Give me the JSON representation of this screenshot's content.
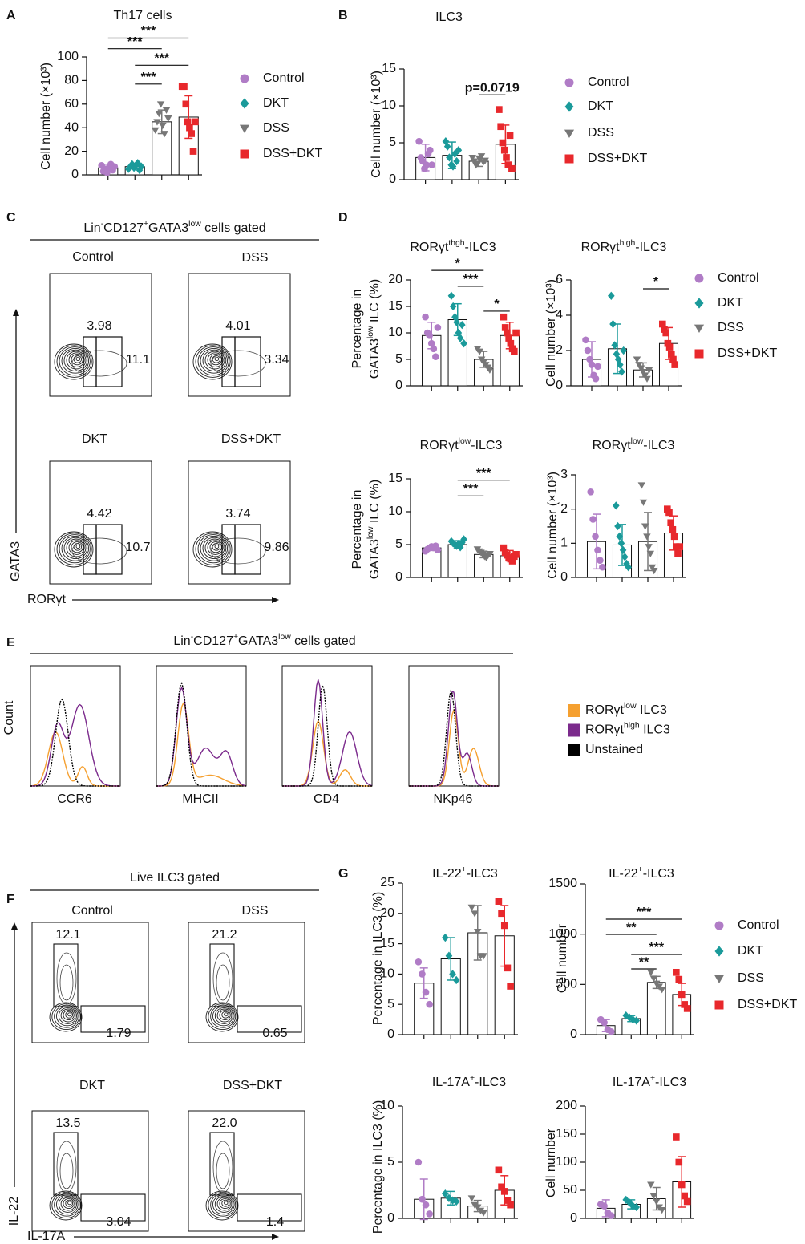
{
  "panel_labels": [
    "A",
    "B",
    "C",
    "D",
    "E",
    "F",
    "G"
  ],
  "chart_data": [
    {
      "type": "bar",
      "title": "Th17 cells",
      "ylabel": [
        [
          "Cell number (×10³)"
        ]
      ],
      "ylim": [
        0,
        100
      ],
      "yticks": [
        0,
        20,
        40,
        60,
        80,
        100
      ],
      "series": [
        {
          "color": "#b07cc6",
          "marker": "circle",
          "value": 6,
          "error": 3,
          "points": [
            8,
            3,
            5,
            2,
            6,
            9,
            4,
            7
          ]
        },
        {
          "color": "#1a9a9a",
          "marker": "diamond",
          "value": 7,
          "error": 2,
          "points": [
            5,
            7,
            9,
            6,
            8,
            10,
            4,
            7
          ]
        },
        {
          "color": "#777777",
          "marker": "triangle",
          "value": 45,
          "error": 10,
          "points": [
            38,
            45,
            52,
            60,
            42,
            35,
            55,
            48
          ]
        },
        {
          "color": "#e8282c",
          "marker": "square",
          "value": 49,
          "error": 18,
          "points": [
            75,
            75,
            60,
            45,
            40,
            35,
            20,
            45
          ]
        }
      ],
      "annotations": [
        "***",
        "***",
        "***",
        "***"
      ]
    },
    {
      "type": "bar",
      "title": "ILC3",
      "ylabel": [
        [
          "Cell number (×10³)"
        ]
      ],
      "ylim": [
        0,
        15
      ],
      "yticks": [
        0,
        5,
        10,
        15
      ],
      "series": [
        {
          "color": "#b07cc6",
          "marker": "circle",
          "value": 3,
          "error": 1.8,
          "points": [
            5.2,
            3,
            2.5,
            1.5,
            2,
            3.5,
            4,
            2
          ]
        },
        {
          "color": "#1a9a9a",
          "marker": "diamond",
          "value": 3.3,
          "error": 1.8,
          "points": [
            5.2,
            4.5,
            3,
            2,
            1.8,
            3.5,
            2.5,
            4
          ]
        },
        {
          "color": "#777777",
          "marker": "triangle",
          "value": 2.5,
          "error": 0.7,
          "points": [
            3,
            2.5,
            2,
            2.2,
            2.8,
            3.2,
            2.4,
            2.6
          ]
        },
        {
          "color": "#e8282c",
          "marker": "square",
          "value": 4.8,
          "error": 2.6,
          "points": [
            9.5,
            7.2,
            5,
            4,
            3,
            2,
            6,
            1.5
          ]
        }
      ],
      "annotations": [
        "p=0.0719"
      ]
    },
    {
      "type": "bar",
      "title": [
        "RORγt",
        "thgh",
        "-ILC3"
      ],
      "ylabel": [
        [
          "Percentage in"
        ],
        [
          "GATA3",
          "low",
          " ILC (%)"
        ]
      ],
      "ylim": [
        0,
        20
      ],
      "yticks": [
        0,
        5,
        10,
        15,
        20
      ],
      "series": [
        {
          "color": "#b07cc6",
          "marker": "circle",
          "value": 9.5,
          "error": 2.5,
          "points": [
            13,
            10,
            9.5,
            8,
            7,
            5.5,
            11
          ]
        },
        {
          "color": "#1a9a9a",
          "marker": "diamond",
          "value": 12.5,
          "error": 3,
          "points": [
            17,
            15,
            13,
            12,
            10,
            9,
            11.5,
            8
          ]
        },
        {
          "color": "#777777",
          "marker": "triangle",
          "value": 5,
          "error": 1.5,
          "points": [
            7,
            6.5,
            5,
            4.5,
            4,
            3.5,
            3
          ]
        },
        {
          "color": "#e8282c",
          "marker": "square",
          "value": 9.5,
          "error": 2.5,
          "points": [
            13,
            11,
            10,
            9,
            8,
            7,
            6.5,
            10
          ]
        }
      ],
      "annotations": [
        "*",
        "***",
        "*"
      ]
    },
    {
      "type": "bar",
      "title": [
        "RORγt",
        "high",
        "-ILC3"
      ],
      "ylabel": [
        [
          "Cell number (×10³)"
        ]
      ],
      "ylim": [
        0,
        6
      ],
      "yticks": [
        0,
        2,
        4,
        6
      ],
      "series": [
        {
          "color": "#b07cc6",
          "marker": "circle",
          "value": 1.5,
          "error": 1,
          "points": [
            2.6,
            2,
            1.5,
            1.2,
            0.6,
            0.4,
            1.1
          ]
        },
        {
          "color": "#1a9a9a",
          "marker": "diamond",
          "value": 2.1,
          "error": 1.4,
          "points": [
            5.1,
            3.5,
            2.3,
            1.8,
            1.5,
            1.2,
            0.8,
            2
          ]
        },
        {
          "color": "#777777",
          "marker": "triangle",
          "value": 0.9,
          "error": 0.4,
          "points": [
            1.5,
            1.2,
            1,
            0.8,
            0.6,
            0.4,
            0.9
          ]
        },
        {
          "color": "#e8282c",
          "marker": "square",
          "value": 2.4,
          "error": 0.9,
          "points": [
            3.5,
            3.2,
            3,
            2.4,
            2.2,
            1.8,
            1.5,
            1.2
          ]
        }
      ],
      "annotations": [
        "*"
      ]
    },
    {
      "type": "bar",
      "title": [
        "RORγt",
        "low",
        "-ILC3"
      ],
      "ylabel": [
        [
          "Percentage in"
        ],
        [
          "GATA3",
          "low",
          " ILC (%)"
        ]
      ],
      "ylim": [
        0,
        15
      ],
      "yticks": [
        0,
        5,
        10,
        15
      ],
      "series": [
        {
          "color": "#b07cc6",
          "marker": "circle",
          "value": 4.5,
          "error": 0.4,
          "points": [
            4,
            4.3,
            4.5,
            4.7,
            4.5,
            4.8,
            4.2
          ]
        },
        {
          "color": "#1a9a9a",
          "marker": "diamond",
          "value": 5,
          "error": 0.6,
          "points": [
            5.5,
            5.2,
            5,
            4.8,
            5.1,
            4.6,
            5.3,
            5.8
          ]
        },
        {
          "color": "#777777",
          "marker": "triangle",
          "value": 3.5,
          "error": 0.5,
          "points": [
            4.3,
            4,
            3.8,
            3.5,
            3.2,
            3,
            3.4,
            3.6
          ]
        },
        {
          "color": "#e8282c",
          "marker": "square",
          "value": 3.3,
          "error": 0.8,
          "points": [
            4.5,
            3.8,
            3.4,
            3,
            2.8,
            2.5,
            3.2,
            3.5
          ]
        }
      ],
      "annotations": [
        "***",
        "***"
      ]
    },
    {
      "type": "bar",
      "title": [
        "RORγt",
        "low",
        "-ILC3"
      ],
      "ylabel": [
        [
          "Cell number (×10³)"
        ]
      ],
      "ylim": [
        0,
        3
      ],
      "yticks": [
        0,
        1,
        2,
        3
      ],
      "series": [
        {
          "color": "#b07cc6",
          "marker": "circle",
          "value": 1.05,
          "error": 0.8,
          "points": [
            2.5,
            1.7,
            1.2,
            0.8,
            0.5,
            0.3
          ]
        },
        {
          "color": "#1a9a9a",
          "marker": "diamond",
          "value": 0.95,
          "error": 0.6,
          "points": [
            2.1,
            1.5,
            1.2,
            1,
            0.8,
            0.6,
            0.4,
            0.3
          ]
        },
        {
          "color": "#777777",
          "marker": "triangle",
          "value": 1.05,
          "error": 0.85,
          "points": [
            2.7,
            2.2,
            1.5,
            1.2,
            0.9,
            0.7,
            0.3,
            0.2
          ]
        },
        {
          "color": "#e8282c",
          "marker": "square",
          "value": 1.3,
          "error": 0.5,
          "points": [
            2,
            1.9,
            1.6,
            1.4,
            1.2,
            0.9,
            0.7,
            0.9
          ]
        }
      ],
      "annotations": []
    },
    {
      "type": "bar",
      "title": [
        "IL-22",
        "+",
        "-ILC3"
      ],
      "ylabel": [
        [
          "Percentage in ILC3 (%)"
        ]
      ],
      "ylim": [
        0,
        25
      ],
      "yticks": [
        0,
        5,
        10,
        15,
        20,
        25
      ],
      "series": [
        {
          "color": "#b07cc6",
          "marker": "circle",
          "value": 8.5,
          "error": 2.5,
          "points": [
            12,
            10,
            7,
            5
          ]
        },
        {
          "color": "#1a9a9a",
          "marker": "diamond",
          "value": 12.5,
          "error": 3.5,
          "points": [
            16,
            13,
            10,
            9
          ]
        },
        {
          "color": "#777777",
          "marker": "triangle",
          "value": 16.8,
          "error": 4.5,
          "points": [
            21,
            20,
            17,
            13,
            13
          ]
        },
        {
          "color": "#e8282c",
          "marker": "square",
          "value": 16.3,
          "error": 5,
          "points": [
            22,
            20,
            18,
            11,
            8
          ]
        }
      ],
      "annotations": []
    },
    {
      "type": "bar",
      "title": [
        "IL-22",
        "+",
        "-ILC3"
      ],
      "ylabel": [
        [
          "Cell number"
        ]
      ],
      "ylim": [
        0,
        1500
      ],
      "yticks": [
        0,
        500,
        1000,
        1500
      ],
      "series": [
        {
          "color": "#b07cc6",
          "marker": "circle",
          "value": 90,
          "error": 60,
          "points": [
            150,
            120,
            50,
            30
          ]
        },
        {
          "color": "#1a9a9a",
          "marker": "diamond",
          "value": 160,
          "error": 30,
          "points": [
            190,
            170,
            150,
            140
          ]
        },
        {
          "color": "#777777",
          "marker": "triangle",
          "value": 520,
          "error": 60,
          "points": [
            620,
            560,
            510,
            480,
            450
          ]
        },
        {
          "color": "#e8282c",
          "marker": "square",
          "value": 400,
          "error": 110,
          "points": [
            620,
            550,
            400,
            300,
            260
          ]
        }
      ],
      "annotations": [
        "***",
        "**",
        "***",
        "**"
      ]
    },
    {
      "type": "bar",
      "title": [
        "IL-17A",
        "+",
        "-ILC3"
      ],
      "ylabel": [
        [
          "Percentage in ILC3 (%)"
        ]
      ],
      "ylim": [
        0,
        10
      ],
      "yticks": [
        0,
        5,
        10
      ],
      "series": [
        {
          "color": "#b07cc6",
          "marker": "circle",
          "value": 1.7,
          "error": 1.8,
          "points": [
            5,
            1.7,
            1.2,
            0.4
          ]
        },
        {
          "color": "#1a9a9a",
          "marker": "diamond",
          "value": 1.8,
          "error": 0.6,
          "points": [
            2.2,
            1.8,
            1.6,
            1.5
          ]
        },
        {
          "color": "#777777",
          "marker": "triangle",
          "value": 1.1,
          "error": 0.5,
          "points": [
            1.8,
            1.2,
            1,
            0.7,
            0.5
          ]
        },
        {
          "color": "#e8282c",
          "marker": "square",
          "value": 2.5,
          "error": 1.3,
          "points": [
            4.3,
            2.8,
            2.4,
            1.6,
            1.2
          ]
        }
      ],
      "annotations": []
    },
    {
      "type": "bar",
      "title": [
        "IL-17A",
        "+",
        "-ILC3"
      ],
      "ylabel": [
        [
          "Cell number"
        ]
      ],
      "ylim": [
        0,
        200
      ],
      "yticks": [
        0,
        50,
        100,
        150,
        200
      ],
      "series": [
        {
          "color": "#b07cc6",
          "marker": "circle",
          "value": 18,
          "error": 15,
          "points": [
            25,
            22,
            10,
            5
          ]
        },
        {
          "color": "#1a9a9a",
          "marker": "diamond",
          "value": 25,
          "error": 8,
          "points": [
            33,
            28,
            22,
            20
          ]
        },
        {
          "color": "#777777",
          "marker": "triangle",
          "value": 35,
          "error": 20,
          "points": [
            60,
            40,
            30,
            20,
            15
          ]
        },
        {
          "color": "#e8282c",
          "marker": "square",
          "value": 65,
          "error": 45,
          "points": [
            145,
            100,
            60,
            40,
            30
          ]
        }
      ],
      "annotations": []
    }
  ],
  "legends": [
    {
      "entries": [
        {
          "name": "Control",
          "color": "#b07cc6",
          "marker": "circle"
        },
        {
          "name": "DKT",
          "color": "#1a9a9a",
          "marker": "diamond"
        },
        {
          "name": "DSS",
          "color": "#777777",
          "marker": "triangle"
        },
        {
          "name": "DSS+DKT",
          "color": "#e8282c",
          "marker": "square"
        }
      ]
    },
    {
      "entries": [
        {
          "name": "Control",
          "color": "#b07cc6",
          "marker": "circle"
        },
        {
          "name": "DKT",
          "color": "#1a9a9a",
          "marker": "diamond"
        },
        {
          "name": "DSS",
          "color": "#777777",
          "marker": "triangle"
        },
        {
          "name": "DSS+DKT",
          "color": "#e8282c",
          "marker": "square"
        }
      ]
    },
    {
      "entries": [
        {
          "name": "Control",
          "color": "#b07cc6",
          "marker": "circle"
        },
        {
          "name": "DKT",
          "color": "#1a9a9a",
          "marker": "diamond"
        },
        {
          "name": "DSS",
          "color": "#777777",
          "marker": "triangle"
        },
        {
          "name": "DSS+DKT",
          "color": "#e8282c",
          "marker": "square"
        }
      ]
    },
    {
      "entries": [
        {
          "name": "Control",
          "color": "#b07cc6",
          "marker": "circle"
        },
        {
          "name": "DKT",
          "color": "#1a9a9a",
          "marker": "diamond"
        },
        {
          "name": "DSS",
          "color": "#777777",
          "marker": "triangle"
        },
        {
          "name": "DSS+DKT",
          "color": "#e8282c",
          "marker": "square"
        }
      ]
    }
  ],
  "flow_c": {
    "header": [
      "Lin",
      "-",
      "CD127",
      "+",
      "GATA3",
      "low",
      " cells gated"
    ],
    "xlabel": "RORγt",
    "ylabel": "GATA3",
    "plots": [
      {
        "title": "Control",
        "gates": [
          "3.98",
          "11.1"
        ]
      },
      {
        "title": "DSS",
        "gates": [
          "4.01",
          "3.34"
        ]
      },
      {
        "title": "DKT",
        "gates": [
          "4.42",
          "10.7"
        ]
      },
      {
        "title": "DSS+DKT",
        "gates": [
          "3.74",
          "9.86"
        ]
      }
    ]
  },
  "flow_e": {
    "header": [
      "Lin",
      "-",
      "CD127",
      "+",
      "GATA3",
      "low",
      " cells gated"
    ],
    "ylabel": "Count",
    "plots": [
      "CCR6",
      "MHCII",
      "CD4",
      "NKp46"
    ],
    "legend": [
      {
        "name": [
          "RORγt",
          "low",
          " ILC3"
        ],
        "color": "#f5a030"
      },
      {
        "name": [
          "RORγt",
          "high",
          " ILC3"
        ],
        "color": "#7b2a8c"
      },
      {
        "name": "Unstained",
        "color": "#000000"
      }
    ]
  },
  "flow_f": {
    "header": "Live ILC3 gated",
    "xlabel": "IL-17A",
    "ylabel": "IL-22",
    "plots": [
      {
        "title": "Control",
        "gates": [
          "12.1",
          "1.79"
        ]
      },
      {
        "title": "DSS",
        "gates": [
          "21.2",
          "0.65"
        ]
      },
      {
        "title": "DKT",
        "gates": [
          "13.5",
          "3.04"
        ]
      },
      {
        "title": "DSS+DKT",
        "gates": [
          "22.0",
          "1.4"
        ]
      }
    ]
  }
}
